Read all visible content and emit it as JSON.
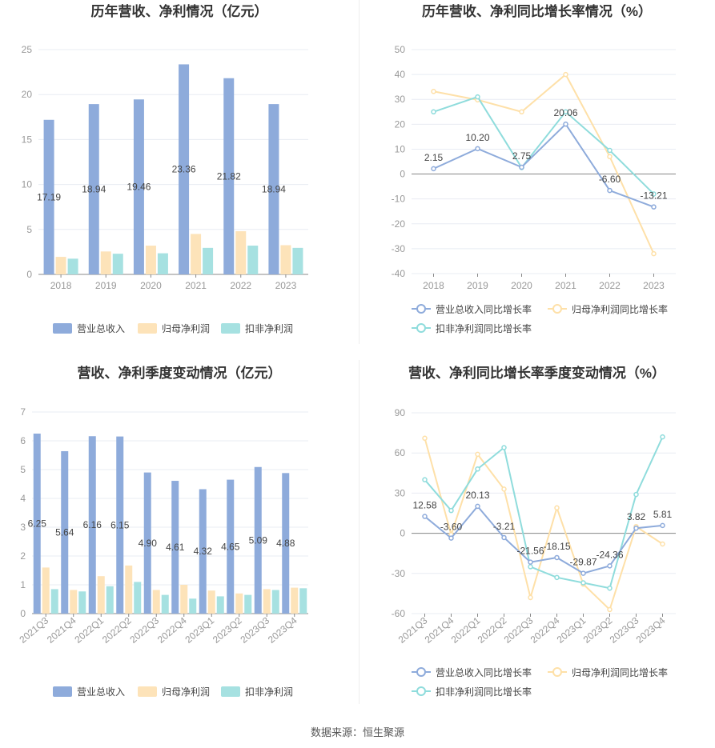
{
  "colors": {
    "revenue": "#8EABDB",
    "netprofit": "#FDE3B9",
    "deducted": "#A6E1E1",
    "revenue_line": "#8EABDB",
    "netprofit_line": "#FEE0A8",
    "deducted_line": "#8FDCDC",
    "grid": "#E8ECF3",
    "axis": "#999999",
    "title": "#333333"
  },
  "footer": "数据来源：恒生聚源",
  "chart_data": [
    {
      "type": "bar",
      "title": "历年营收、净利情况（亿元）",
      "categories": [
        "2018",
        "2019",
        "2020",
        "2021",
        "2022",
        "2023"
      ],
      "ylim": [
        0,
        25
      ],
      "yticks": [
        0,
        5,
        10,
        15,
        20,
        25
      ],
      "series": [
        {
          "name": "营业总收入",
          "values": [
            17.19,
            18.94,
            19.46,
            23.36,
            21.82,
            18.94
          ],
          "labels": [
            "17.19",
            "18.94",
            "19.46",
            "23.36",
            "21.82",
            "18.94"
          ]
        },
        {
          "name": "归母净利润",
          "values": [
            1.95,
            2.55,
            3.2,
            4.5,
            4.8,
            3.25
          ]
        },
        {
          "name": "扣非净利润",
          "values": [
            1.75,
            2.3,
            2.35,
            2.95,
            3.2,
            2.95
          ]
        }
      ],
      "legend": "bottom"
    },
    {
      "type": "line",
      "title": "历年营收、净利同比增长率情况（%）",
      "categories": [
        "2018",
        "2019",
        "2020",
        "2021",
        "2022",
        "2023"
      ],
      "ylim": [
        -40,
        50
      ],
      "yticks": [
        -40,
        -30,
        -20,
        -10,
        0,
        10,
        20,
        30,
        40,
        50
      ],
      "series": [
        {
          "name": "营业总收入同比增长率",
          "values": [
            2.15,
            10.2,
            2.75,
            20.06,
            -6.6,
            -13.21
          ],
          "labels": [
            "2.15",
            "10.20",
            "2.75",
            "20.06",
            "-6.60",
            "-13.21"
          ]
        },
        {
          "name": "归母净利润同比增长率",
          "values": [
            33.2,
            29.8,
            25.0,
            40.0,
            7.0,
            -32.0
          ]
        },
        {
          "name": "扣非净利润同比增长率",
          "values": [
            25.0,
            31.0,
            2.6,
            25.0,
            9.5,
            -8.0
          ]
        }
      ],
      "legend": "bottom"
    },
    {
      "type": "bar",
      "title": "营收、净利季度变动情况（亿元）",
      "categories": [
        "2021Q3",
        "2021Q4",
        "2022Q1",
        "2022Q2",
        "2022Q3",
        "2022Q4",
        "2023Q1",
        "2023Q2",
        "2023Q3",
        "2023Q4"
      ],
      "ylim": [
        0,
        7
      ],
      "yticks": [
        0,
        1,
        2,
        3,
        4,
        5,
        6,
        7
      ],
      "series": [
        {
          "name": "营业总收入",
          "values": [
            6.25,
            5.64,
            6.16,
            6.15,
            4.9,
            4.61,
            4.32,
            4.65,
            5.09,
            4.88
          ],
          "labels": [
            "6.25",
            "5.64",
            "6.16",
            "6.15",
            "4.90",
            "4.61",
            "4.32",
            "4.65",
            "5.09",
            "4.88"
          ]
        },
        {
          "name": "归母净利润",
          "values": [
            1.6,
            0.82,
            1.3,
            1.67,
            0.82,
            1.0,
            0.8,
            0.7,
            0.85,
            0.9
          ]
        },
        {
          "name": "扣非净利润",
          "values": [
            0.85,
            0.77,
            0.95,
            1.1,
            0.65,
            0.52,
            0.6,
            0.65,
            0.82,
            0.88
          ]
        }
      ],
      "legend": "bottom"
    },
    {
      "type": "line",
      "title": "营收、净利同比增长率季度变动情况（%）",
      "categories": [
        "2021Q3",
        "2021Q4",
        "2022Q1",
        "2022Q2",
        "2022Q3",
        "2022Q4",
        "2023Q1",
        "2023Q2",
        "2023Q3",
        "2023Q4"
      ],
      "ylim": [
        -60,
        90
      ],
      "yticks": [
        -60,
        -30,
        0,
        30,
        60,
        90
      ],
      "series": [
        {
          "name": "营业总收入同比增长率",
          "values": [
            12.58,
            -3.6,
            20.13,
            -3.21,
            -21.56,
            -18.15,
            -29.87,
            -24.36,
            3.82,
            5.81
          ],
          "labels": [
            "12.58",
            "-3.60",
            "20.13",
            "-3.21",
            "-21.56",
            "-18.15",
            "-29.87",
            "-24.36",
            "3.82",
            "5.81"
          ]
        },
        {
          "name": "归母净利润同比增长率",
          "values": [
            71,
            -1,
            59,
            33,
            -48,
            19,
            -38,
            -57,
            5,
            -8
          ]
        },
        {
          "name": "扣非净利润同比增长率",
          "values": [
            40,
            17,
            48,
            64,
            -25,
            -33,
            -37,
            -41,
            29,
            72
          ]
        }
      ],
      "legend": "bottom"
    }
  ]
}
